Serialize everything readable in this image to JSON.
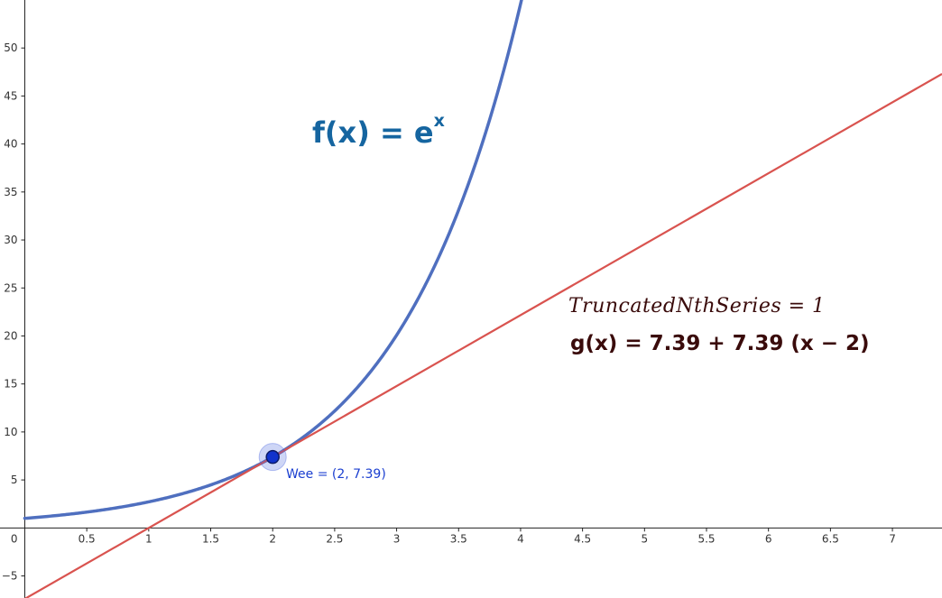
{
  "chart_data": {
    "type": "line",
    "title": "",
    "xlabel": "",
    "ylabel": "",
    "xlim": [
      -0.2,
      7.4
    ],
    "ylim": [
      -7.3,
      55
    ],
    "grid": false,
    "x_ticks": [
      0.5,
      1,
      1.5,
      2,
      2.5,
      3,
      3.5,
      4,
      4.5,
      5,
      5.5,
      6,
      6.5,
      7
    ],
    "x_tick_labels": [
      "0.5",
      "1",
      "1.5",
      "2",
      "2.5",
      "3",
      "3.5",
      "4",
      "4.5",
      "5",
      "5.5",
      "6",
      "6.5",
      "7"
    ],
    "y_ticks": [
      -5,
      5,
      10,
      15,
      20,
      25,
      30,
      35,
      40,
      45,
      50
    ],
    "y_tick_labels": [
      "−5",
      "5",
      "10",
      "15",
      "20",
      "25",
      "30",
      "35",
      "40",
      "45",
      "50"
    ],
    "origin_label": "0",
    "series": [
      {
        "label": "f(x) = e",
        "label_exponent": "x",
        "expression": "exp(x)",
        "color": "#4f6fbf",
        "x": [
          0,
          0.5,
          1,
          1.5,
          2,
          2.5,
          3,
          3.5,
          4
        ],
        "y": [
          1,
          1.65,
          2.72,
          4.48,
          7.39,
          12.18,
          20.09,
          33.12,
          54.6
        ]
      },
      {
        "label": "g(x) = 7.39 + 7.39 (x − 2)",
        "expression": "7.39 + 7.39*(x - 2)",
        "color": "#d9534f",
        "x": [
          0,
          1,
          2,
          3,
          4,
          5,
          6,
          7
        ],
        "y": [
          -7.39,
          0,
          7.39,
          14.78,
          22.17,
          29.56,
          36.95,
          44.34
        ]
      }
    ],
    "annotations": [
      {
        "text": "TruncatedNthSeries = 1"
      }
    ],
    "point": {
      "name": "Wee",
      "label": "Wee = (2, 7.39)",
      "x": 2,
      "y": 7.39,
      "color": "#1133cc"
    }
  }
}
